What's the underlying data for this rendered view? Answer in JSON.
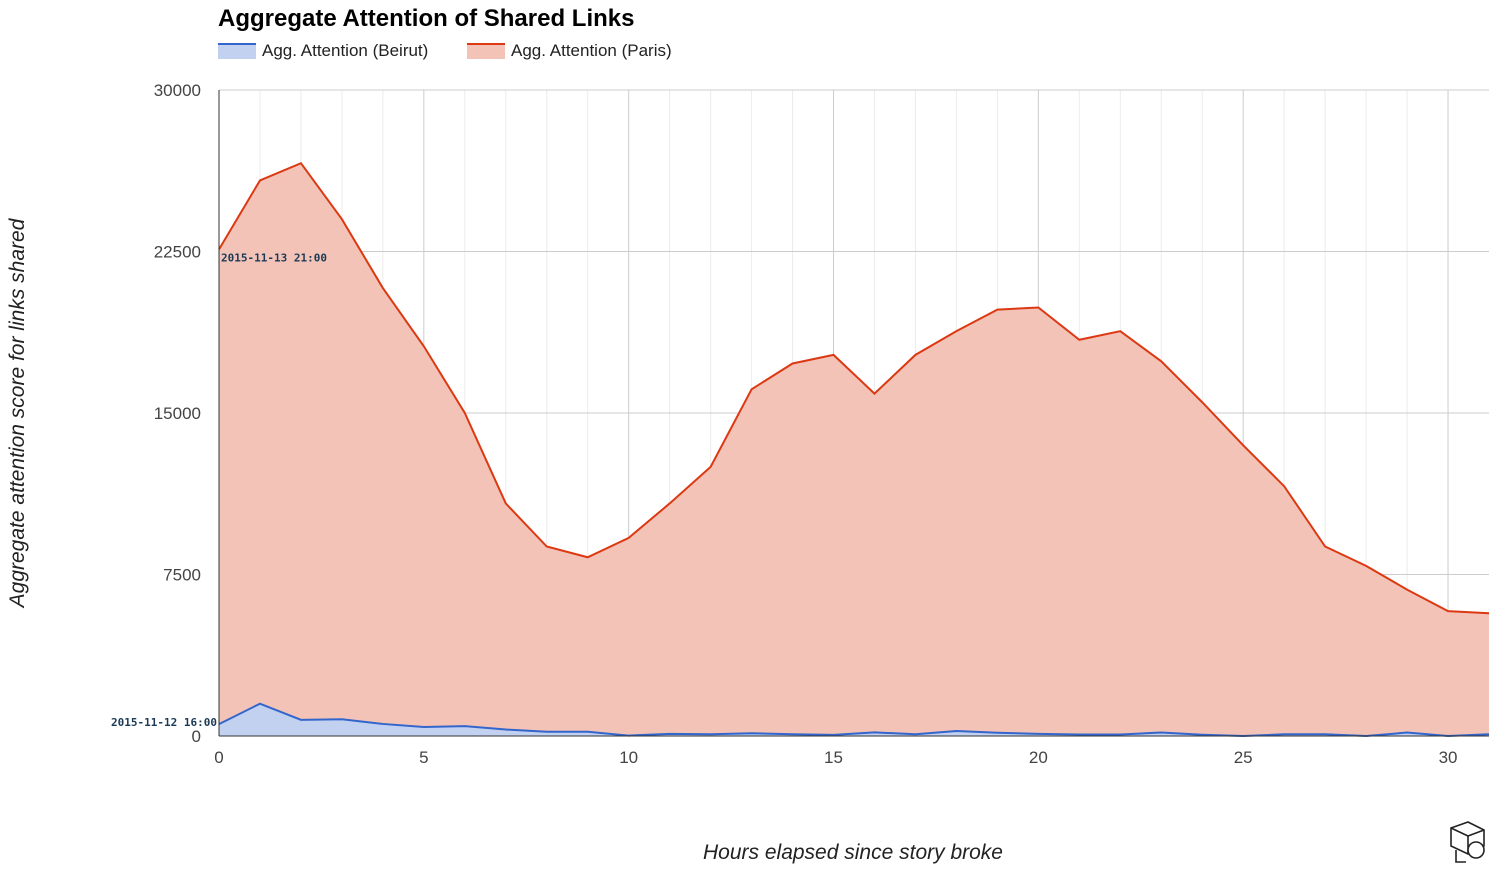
{
  "chart_data": {
    "type": "area",
    "title": "Aggregate Attention of Shared Links",
    "xlabel": "Hours elapsed since story broke",
    "ylabel": "Aggregate attention score for links shared",
    "xlim": [
      0,
      31
    ],
    "ylim": [
      0,
      30000
    ],
    "x_ticks": [
      "0",
      "5",
      "10",
      "15",
      "20",
      "25",
      "30"
    ],
    "y_ticks": [
      "0",
      "7500",
      "15000",
      "22500",
      "30000"
    ],
    "grid": true,
    "legend_position": "top-left",
    "x": [
      0,
      1,
      2,
      3,
      4,
      5,
      6,
      7,
      8,
      9,
      10,
      11,
      12,
      13,
      14,
      15,
      16,
      17,
      18,
      19,
      20,
      21,
      22,
      23,
      24,
      25,
      26,
      27,
      28,
      29,
      30,
      31
    ],
    "series": [
      {
        "name": "Agg. Attention (Paris)",
        "line_color": "#dc3912",
        "fill_color": "#f3c3b7",
        "values": [
          22600,
          25800,
          26600,
          24000,
          20800,
          18100,
          15000,
          10800,
          8800,
          8300,
          9200,
          10800,
          12500,
          16100,
          17300,
          17700,
          15900,
          17700,
          18800,
          19800,
          19900,
          18400,
          18800,
          17400,
          15500,
          13500,
          11600,
          8800,
          7900,
          6800,
          5800,
          5700
        ],
        "annotation": {
          "x": 0,
          "text": "2015-11-13 21:00"
        }
      },
      {
        "name": "Agg. Attention (Beirut)",
        "line_color": "#3366cc",
        "fill_color": "#c3d1f0",
        "values": [
          550,
          1500,
          750,
          780,
          560,
          420,
          460,
          300,
          200,
          200,
          20,
          100,
          80,
          130,
          80,
          50,
          170,
          80,
          230,
          150,
          100,
          70,
          70,
          160,
          60,
          0,
          80,
          80,
          0,
          160,
          0,
          80
        ],
        "annotation": {
          "x": 0,
          "text": "2015-11-12 16:00"
        }
      }
    ]
  },
  "legend": {
    "beirut_label": "Agg. Attention (Beirut)",
    "paris_label": "Agg. Attention (Paris)"
  },
  "logo": {
    "icon": "chart-tool-logo-icon"
  }
}
